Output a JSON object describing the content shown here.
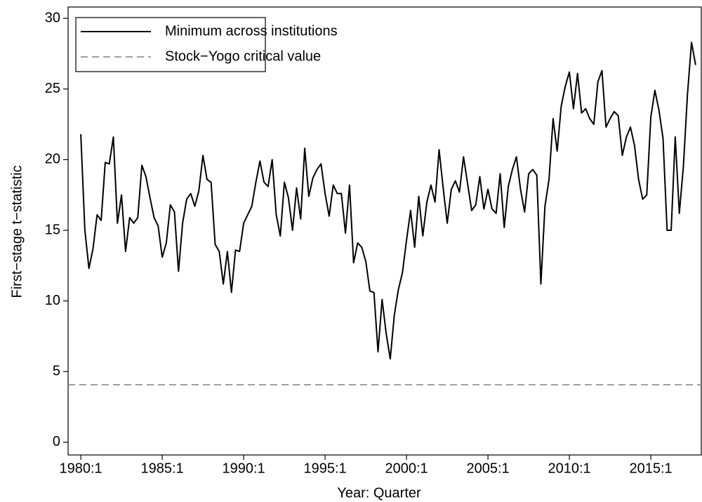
{
  "chart_data": {
    "type": "line",
    "x_label": "Year: Quarter",
    "y_label": "First−stage t−statistic",
    "x": [
      1980,
      1980.25,
      1980.5,
      1980.75,
      1981,
      1981.25,
      1981.5,
      1981.75,
      1982,
      1982.25,
      1982.5,
      1982.75,
      1983,
      1983.25,
      1983.5,
      1983.75,
      1984,
      1984.25,
      1984.5,
      1984.75,
      1985,
      1985.25,
      1985.5,
      1985.75,
      1986,
      1986.25,
      1986.5,
      1986.75,
      1987,
      1987.25,
      1987.5,
      1987.75,
      1988,
      1988.25,
      1988.5,
      1988.75,
      1989,
      1989.25,
      1989.5,
      1989.75,
      1990,
      1990.25,
      1990.5,
      1990.75,
      1991,
      1991.25,
      1991.5,
      1991.75,
      1992,
      1992.25,
      1992.5,
      1992.75,
      1993,
      1993.25,
      1993.5,
      1993.75,
      1994,
      1994.25,
      1994.5,
      1994.75,
      1995,
      1995.25,
      1995.5,
      1995.75,
      1996,
      1996.25,
      1996.5,
      1996.75,
      1997,
      1997.25,
      1997.5,
      1997.75,
      1998,
      1998.25,
      1998.5,
      1998.75,
      1999,
      1999.25,
      1999.5,
      1999.75,
      2000,
      2000.25,
      2000.5,
      2000.75,
      2001,
      2001.25,
      2001.5,
      2001.75,
      2002,
      2002.25,
      2002.5,
      2002.75,
      2003,
      2003.25,
      2003.5,
      2003.75,
      2004,
      2004.25,
      2004.5,
      2004.75,
      2005,
      2005.25,
      2005.5,
      2005.75,
      2006,
      2006.25,
      2006.5,
      2006.75,
      2007,
      2007.25,
      2007.5,
      2007.75,
      2008,
      2008.25,
      2008.5,
      2008.75,
      2009,
      2009.25,
      2009.5,
      2009.75,
      2010,
      2010.25,
      2010.5,
      2010.75,
      2011,
      2011.25,
      2011.5,
      2011.75,
      2012,
      2012.25,
      2012.5,
      2012.75,
      2013,
      2013.25,
      2013.5,
      2013.75,
      2014,
      2014.25,
      2014.5,
      2014.75,
      2015,
      2015.25,
      2015.5,
      2015.75,
      2016,
      2016.25,
      2016.5,
      2016.75,
      2017,
      2017.25,
      2017.5,
      2017.75
    ],
    "series": [
      {
        "name": "Minimum across institutions",
        "color": "#000000",
        "values": [
          21.8,
          15,
          12.3,
          13.7,
          16.1,
          15.7,
          19.8,
          19.7,
          21.6,
          15.5,
          17.5,
          13.5,
          15.9,
          15.5,
          15.9,
          19.6,
          18.8,
          17.3,
          15.9,
          15.3,
          13.1,
          14.1,
          16.8,
          16.3,
          12.1,
          15.5,
          17.2,
          17.6,
          16.7,
          17.8,
          20.3,
          18.6,
          18.4,
          14.0,
          13.5,
          11.2,
          13.5,
          10.6,
          13.6,
          13.5,
          15.5,
          16.1,
          16.7,
          18.4,
          19.9,
          18.4,
          18.1,
          20.0,
          16.1,
          14.6,
          18.4,
          17.3,
          15.0,
          18.0,
          15.8,
          20.8,
          17.4,
          18.7,
          19.3,
          19.7,
          17.6,
          16.0,
          18.2,
          17.6,
          17.6,
          14.8,
          18.2,
          12.7,
          14.1,
          13.8,
          12.8,
          10.7,
          10.6,
          6.4,
          10.1,
          7.7,
          5.9,
          9.0,
          10.8,
          12.0,
          14.3,
          16.4,
          13.8,
          17.4,
          14.6,
          17.0,
          18.2,
          17.0,
          20.7,
          18.0,
          15.5,
          17.9,
          18.5,
          17.7,
          20.2,
          18.3,
          16.4,
          16.8,
          18.8,
          16.5,
          17.9,
          16.5,
          16.2,
          19.0,
          15.2,
          18.1,
          19.3,
          20.2,
          17.9,
          16.3,
          19.0,
          19.3,
          18.9,
          11.2,
          16.7,
          18.6,
          22.9,
          20.6,
          23.8,
          25.2,
          26.2,
          23.6,
          26.1,
          23.3,
          23.6,
          22.9,
          22.5,
          25.5,
          26.3,
          22.3,
          22.9,
          23.4,
          23.1,
          20.3,
          21.6,
          22.3,
          21.0,
          18.6,
          17.2,
          17.5,
          23.0,
          24.9,
          23.5,
          21.5,
          15.0,
          15.0,
          21.6,
          16.2,
          19.5,
          24.6,
          28.3,
          26.7
        ]
      }
    ],
    "hlines": [
      {
        "name": "Stock−Yogo critical value",
        "value": 4.07,
        "color": "#808080",
        "dashed": true
      }
    ],
    "xlim": [
      1979.22,
      2018.1
    ],
    "xticks": [
      {
        "value": 1980,
        "label": "1980:1"
      },
      {
        "value": 1985,
        "label": "1985:1"
      },
      {
        "value": 1990,
        "label": "1990:1"
      },
      {
        "value": 1995,
        "label": "1995:1"
      },
      {
        "value": 2000,
        "label": "2000:1"
      },
      {
        "value": 2005,
        "label": "2005:1"
      },
      {
        "value": 2010,
        "label": "2010:1"
      },
      {
        "value": 2015,
        "label": "2015:1"
      }
    ],
    "ylim": [
      -0.9,
      30.8
    ],
    "yticks": [
      0,
      5,
      10,
      15,
      20,
      25,
      30
    ],
    "legend": "upper left"
  }
}
